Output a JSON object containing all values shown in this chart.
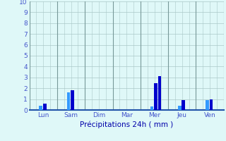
{
  "days": [
    "Lun",
    "Sam",
    "Dim",
    "Mar",
    "Mer",
    "Jeu",
    "Ven"
  ],
  "bar1_values": [
    0.4,
    1.6,
    0.0,
    0.0,
    0.3,
    0.4,
    0.9
  ],
  "bar2_values": [
    0.6,
    1.8,
    0.0,
    0.0,
    2.5,
    0.9,
    0.95
  ],
  "bar3_values": [
    0.0,
    0.0,
    0.0,
    0.0,
    3.1,
    0.0,
    0.0
  ],
  "bar1_color": "#3399ff",
  "bar2_color": "#0000cc",
  "xlabel": "Précipitations 24h ( mm )",
  "ylim": [
    0,
    10
  ],
  "yticks": [
    0,
    1,
    2,
    3,
    4,
    5,
    6,
    7,
    8,
    9,
    10
  ],
  "background_color": "#dff8f8",
  "grid_color": "#aac8c8",
  "separator_color": "#779999",
  "tick_color": "#4455cc",
  "xlabel_color": "#0000aa",
  "bottom_line_color": "#2255aa"
}
